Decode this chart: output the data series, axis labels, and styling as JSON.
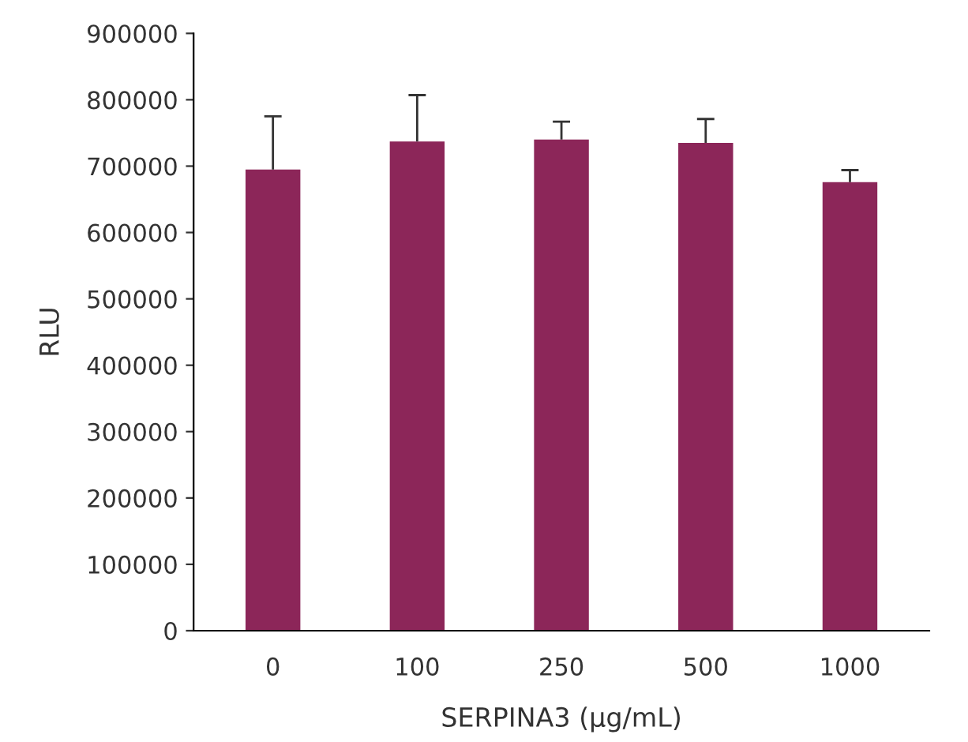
{
  "chart_data": {
    "type": "bar",
    "xlabel": "SERPINA3 (µg/mL)",
    "ylabel": "RLU",
    "categories": [
      "0",
      "100",
      "250",
      "500",
      "1000"
    ],
    "values": [
      695000,
      737000,
      740000,
      735000,
      676000
    ],
    "errors": [
      [
        695000,
        775000
      ],
      [
        737000,
        807000
      ],
      [
        740000,
        767000
      ],
      [
        735000,
        771000
      ],
      [
        676000,
        694000
      ]
    ],
    "color": "#8c2659",
    "ylim": [
      0,
      900000
    ],
    "yticks": [
      0,
      100000,
      200000,
      300000,
      400000,
      500000,
      600000,
      700000,
      800000,
      900000
    ],
    "grid": false
  }
}
